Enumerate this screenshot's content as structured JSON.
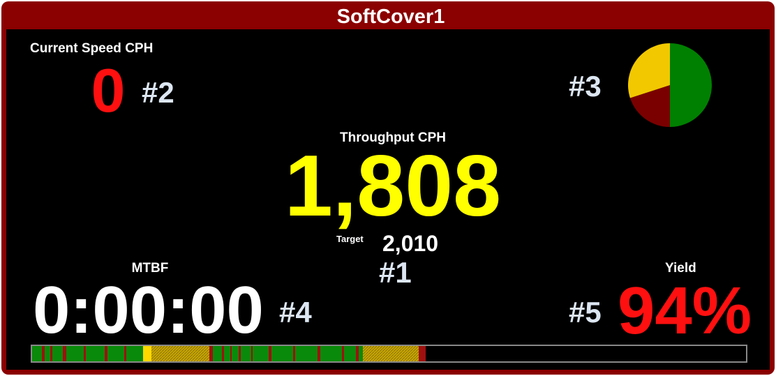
{
  "header": {
    "title": "SoftCover1"
  },
  "current_speed": {
    "label": "Current Speed CPH",
    "value": "0",
    "callout": "#2"
  },
  "status_pie": {
    "callout": "#3",
    "values": [
      50,
      20,
      30
    ],
    "colors": [
      "#008000",
      "#7a0000",
      "#f2c800"
    ]
  },
  "throughput": {
    "label": "Throughput CPH",
    "value": "1,808",
    "target_label": "Target",
    "target_value": "2,010",
    "callout": "#1"
  },
  "mtbf": {
    "label": "MTBF",
    "value": "0:00:00",
    "callout": "#4"
  },
  "yield": {
    "label": "Yield",
    "value": "94%",
    "callout": "#5"
  }
}
